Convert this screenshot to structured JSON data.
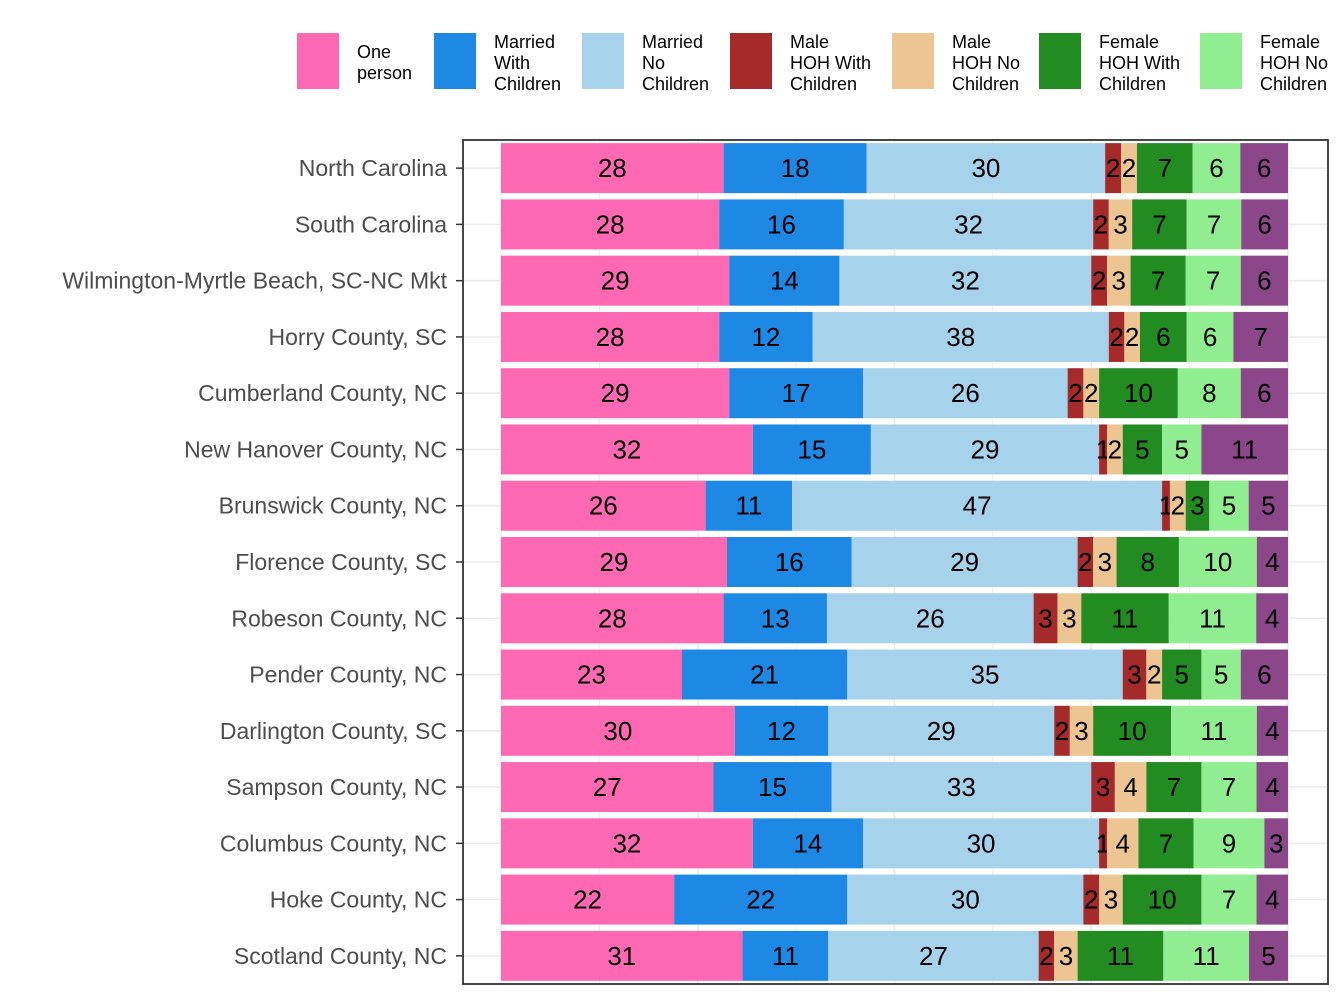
{
  "chart_data": {
    "type": "bar",
    "orientation": "horizontal",
    "stacked": true,
    "normalized_percent": true,
    "xlim": [
      0,
      100
    ],
    "grid": true,
    "legend_placement": "top",
    "categories": [
      "North Carolina",
      "South Carolina",
      "Wilmington-Myrtle Beach, SC-NC Mkt",
      "Horry County, SC",
      "Cumberland County, NC",
      "New Hanover County, NC",
      "Brunswick County, NC",
      "Florence County, SC",
      "Robeson County, NC",
      "Pender County, NC",
      "Darlington County, SC",
      "Sampson County, NC",
      "Columbus County, NC",
      "Hoke County, NC",
      "Scotland County, NC"
    ],
    "series": [
      {
        "name": "One person",
        "legend_lines": [
          "One",
          "person"
        ],
        "color": "#FF69B4",
        "values": [
          28,
          28,
          29,
          28,
          29,
          32,
          26,
          29,
          28,
          23,
          30,
          27,
          32,
          22,
          31
        ]
      },
      {
        "name": "Married With Children",
        "legend_lines": [
          "Married",
          "With",
          "Children"
        ],
        "color": "#1E88E5",
        "values": [
          18,
          16,
          14,
          12,
          17,
          15,
          11,
          16,
          13,
          21,
          12,
          15,
          14,
          22,
          11
        ]
      },
      {
        "name": "Married No Children",
        "legend_lines": [
          "Married",
          "No",
          "Children"
        ],
        "color": "#A6D2EC",
        "values": [
          30,
          32,
          32,
          38,
          26,
          29,
          47,
          29,
          26,
          35,
          29,
          33,
          30,
          30,
          27
        ]
      },
      {
        "name": "Male HOH With Children",
        "legend_lines": [
          "Male",
          "HOH With",
          "Children"
        ],
        "color": "#A52A2A",
        "values": [
          2,
          2,
          2,
          2,
          2,
          1,
          1,
          2,
          3,
          3,
          2,
          3,
          1,
          2,
          2
        ]
      },
      {
        "name": "Male HOH No Children",
        "legend_lines": [
          "Male",
          "HOH No",
          "Children"
        ],
        "color": "#EDC592",
        "values": [
          2,
          3,
          3,
          2,
          2,
          2,
          2,
          3,
          3,
          2,
          3,
          4,
          4,
          3,
          3
        ]
      },
      {
        "name": "Female HOH With Children",
        "legend_lines": [
          "Female",
          "HOH With",
          "Children"
        ],
        "color": "#228B22",
        "values": [
          7,
          7,
          7,
          6,
          10,
          5,
          3,
          8,
          11,
          5,
          10,
          7,
          7,
          10,
          11
        ]
      },
      {
        "name": "Female HOH No Children",
        "legend_lines": [
          "Female",
          "HOH No",
          "Children"
        ],
        "color": "#90EE90",
        "values": [
          6,
          7,
          7,
          6,
          8,
          5,
          5,
          10,
          11,
          5,
          11,
          7,
          9,
          7,
          11
        ]
      },
      {
        "color": "#8B4789",
        "values": [
          6,
          6,
          6,
          7,
          6,
          11,
          5,
          4,
          4,
          6,
          4,
          4,
          3,
          4,
          5
        ]
      }
    ]
  }
}
